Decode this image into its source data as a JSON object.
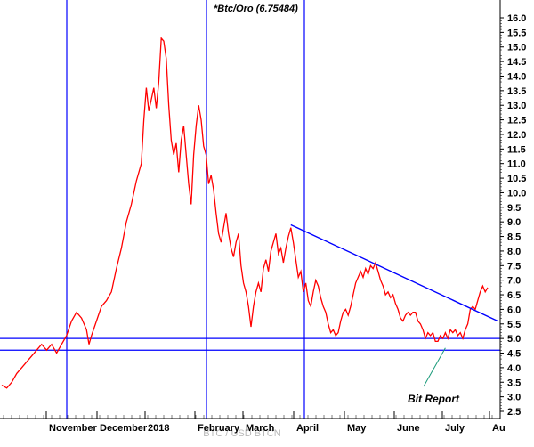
{
  "chart_data": {
    "type": "line",
    "title": "*Btc/Oro (6.75484)",
    "watermark": "BTC / USD BTCN",
    "y_axis_side": "right",
    "ylim": [
      2.5,
      16.0
    ],
    "y_ticks": [
      "2.5",
      "3.0",
      "3.5",
      "4.0",
      "4.5",
      "5.0",
      "5.5",
      "6.0",
      "6.5",
      "7.0",
      "7.5",
      "8.0",
      "8.5",
      "9.0",
      "9.5",
      "10.0",
      "10.5",
      "11.0",
      "11.5",
      "12.0",
      "12.5",
      "13.0",
      "13.5",
      "14.0",
      "14.5",
      "15.0",
      "15.5",
      "16.0"
    ],
    "x_ticks": [
      "November",
      "December",
      "2018",
      "February",
      "March",
      "April",
      "May",
      "June",
      "July",
      "Au"
    ],
    "series": [
      {
        "color": "#ff0000",
        "points": [
          [
            0,
            3.4
          ],
          [
            2,
            3.3
          ],
          [
            4,
            3.5
          ],
          [
            6,
            3.8
          ],
          [
            8,
            4.0
          ],
          [
            10,
            4.2
          ],
          [
            12,
            4.4
          ],
          [
            14,
            4.6
          ],
          [
            16,
            4.8
          ],
          [
            18,
            4.6
          ],
          [
            20,
            4.8
          ],
          [
            22,
            4.5
          ],
          [
            24,
            4.8
          ],
          [
            26,
            5.1
          ],
          [
            28,
            5.6
          ],
          [
            30,
            5.9
          ],
          [
            32,
            5.7
          ],
          [
            34,
            5.3
          ],
          [
            35,
            4.8
          ],
          [
            36,
            5.1
          ],
          [
            38,
            5.6
          ],
          [
            40,
            6.1
          ],
          [
            42,
            6.3
          ],
          [
            44,
            6.6
          ],
          [
            46,
            7.4
          ],
          [
            48,
            8.1
          ],
          [
            50,
            9.0
          ],
          [
            52,
            9.6
          ],
          [
            54,
            10.4
          ],
          [
            56,
            11.0
          ],
          [
            57,
            12.5
          ],
          [
            58,
            13.6
          ],
          [
            59,
            12.8
          ],
          [
            60,
            13.2
          ],
          [
            61,
            13.6
          ],
          [
            62,
            12.9
          ],
          [
            63,
            13.8
          ],
          [
            64,
            15.3
          ],
          [
            65,
            15.2
          ],
          [
            66,
            14.6
          ],
          [
            67,
            13.0
          ],
          [
            68,
            11.8
          ],
          [
            69,
            11.3
          ],
          [
            70,
            11.7
          ],
          [
            71,
            10.7
          ],
          [
            72,
            11.8
          ],
          [
            73,
            12.3
          ],
          [
            74,
            11.3
          ],
          [
            75,
            10.3
          ],
          [
            76,
            9.6
          ],
          [
            77,
            11.3
          ],
          [
            78,
            12.3
          ],
          [
            79,
            13.0
          ],
          [
            80,
            12.5
          ],
          [
            81,
            11.6
          ],
          [
            82,
            11.3
          ],
          [
            83,
            10.3
          ],
          [
            84,
            10.6
          ],
          [
            85,
            10.1
          ],
          [
            86,
            9.3
          ],
          [
            87,
            8.6
          ],
          [
            88,
            8.3
          ],
          [
            89,
            8.8
          ],
          [
            90,
            9.3
          ],
          [
            91,
            8.6
          ],
          [
            92,
            8.1
          ],
          [
            93,
            7.8
          ],
          [
            94,
            8.3
          ],
          [
            95,
            8.6
          ],
          [
            96,
            7.5
          ],
          [
            97,
            6.9
          ],
          [
            98,
            6.6
          ],
          [
            99,
            6.1
          ],
          [
            100,
            5.4
          ],
          [
            101,
            6.1
          ],
          [
            102,
            6.6
          ],
          [
            103,
            6.9
          ],
          [
            104,
            6.6
          ],
          [
            105,
            7.4
          ],
          [
            106,
            7.7
          ],
          [
            107,
            7.3
          ],
          [
            108,
            8.0
          ],
          [
            109,
            8.3
          ],
          [
            110,
            8.6
          ],
          [
            111,
            7.9
          ],
          [
            112,
            8.1
          ],
          [
            113,
            7.6
          ],
          [
            114,
            8.1
          ],
          [
            115,
            8.5
          ],
          [
            116,
            8.8
          ],
          [
            117,
            8.3
          ],
          [
            118,
            7.7
          ],
          [
            119,
            7.1
          ],
          [
            120,
            7.3
          ],
          [
            121,
            6.6
          ],
          [
            122,
            6.9
          ],
          [
            123,
            6.3
          ],
          [
            124,
            6.1
          ],
          [
            125,
            6.6
          ],
          [
            126,
            7.0
          ],
          [
            127,
            6.8
          ],
          [
            128,
            6.4
          ],
          [
            129,
            6.1
          ],
          [
            130,
            5.9
          ],
          [
            131,
            5.5
          ],
          [
            132,
            5.2
          ],
          [
            133,
            5.3
          ],
          [
            134,
            5.1
          ],
          [
            135,
            5.2
          ],
          [
            136,
            5.6
          ],
          [
            137,
            5.9
          ],
          [
            138,
            6.0
          ],
          [
            139,
            5.8
          ],
          [
            140,
            6.1
          ],
          [
            141,
            6.5
          ],
          [
            142,
            6.9
          ],
          [
            143,
            7.1
          ],
          [
            144,
            7.3
          ],
          [
            145,
            7.1
          ],
          [
            146,
            7.4
          ],
          [
            147,
            7.2
          ],
          [
            148,
            7.5
          ],
          [
            149,
            7.4
          ],
          [
            150,
            7.6
          ],
          [
            151,
            7.3
          ],
          [
            152,
            7.0
          ],
          [
            153,
            6.8
          ],
          [
            154,
            6.5
          ],
          [
            155,
            6.6
          ],
          [
            156,
            6.4
          ],
          [
            157,
            6.5
          ],
          [
            158,
            6.2
          ],
          [
            159,
            6.0
          ],
          [
            160,
            5.7
          ],
          [
            161,
            5.6
          ],
          [
            162,
            5.8
          ],
          [
            163,
            5.9
          ],
          [
            164,
            5.8
          ],
          [
            165,
            5.9
          ],
          [
            166,
            5.9
          ],
          [
            167,
            5.6
          ],
          [
            168,
            5.5
          ],
          [
            169,
            5.3
          ],
          [
            170,
            5.0
          ],
          [
            171,
            5.2
          ],
          [
            172,
            5.1
          ],
          [
            173,
            5.2
          ],
          [
            174,
            4.9
          ],
          [
            175,
            4.9
          ],
          [
            176,
            5.1
          ],
          [
            177,
            5.0
          ],
          [
            178,
            5.2
          ],
          [
            179,
            5.0
          ],
          [
            180,
            5.3
          ],
          [
            181,
            5.2
          ],
          [
            182,
            5.3
          ],
          [
            183,
            5.1
          ],
          [
            184,
            5.2
          ],
          [
            185,
            5.0
          ],
          [
            186,
            5.3
          ],
          [
            187,
            5.5
          ],
          [
            188,
            6.0
          ],
          [
            189,
            6.1
          ],
          [
            190,
            6.0
          ],
          [
            191,
            6.3
          ],
          [
            192,
            6.6
          ],
          [
            193,
            6.8
          ],
          [
            194,
            6.6
          ],
          [
            195,
            6.75
          ]
        ]
      }
    ],
    "trendline": {
      "color": "#0000ff",
      "from": [
        116,
        8.9
      ],
      "to": [
        199,
        5.6
      ]
    },
    "horizontal_lines": [
      5.0,
      4.6
    ],
    "vertical_lines": [
      "November",
      "February",
      "April"
    ],
    "annotation": {
      "text": "Bit Report",
      "points_to": [
        178,
        4.8
      ]
    }
  }
}
